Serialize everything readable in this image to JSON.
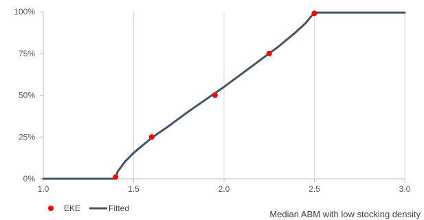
{
  "chart_data": {
    "type": "line",
    "title": "",
    "xlabel": "Median ABM with low stocking density",
    "ylabel": "",
    "xlim": [
      1.0,
      3.0
    ],
    "ylim": [
      0,
      1
    ],
    "x_ticks": [
      1.0,
      1.5,
      2.0,
      2.5,
      3.0
    ],
    "x_tick_labels": [
      "1.0",
      "1.5",
      "2.0",
      "2.5",
      "3.0"
    ],
    "y_ticks": [
      0,
      0.25,
      0.5,
      0.75,
      1.0
    ],
    "y_tick_labels": [
      "0%",
      "25%",
      "50%",
      "75%",
      "100%"
    ],
    "grid": "vertical",
    "legend_position": "bottom-left",
    "series": [
      {
        "name": "EKE",
        "kind": "scatter",
        "color": "#ff0000",
        "points": [
          {
            "x": 1.4,
            "y": 0.01
          },
          {
            "x": 1.6,
            "y": 0.25
          },
          {
            "x": 1.95,
            "y": 0.5
          },
          {
            "x": 2.25,
            "y": 0.75
          },
          {
            "x": 2.5,
            "y": 0.99
          }
        ]
      },
      {
        "name": "Fitted",
        "kind": "line",
        "color": "#44546a",
        "points": [
          {
            "x": 1.0,
            "y": 0.0
          },
          {
            "x": 1.4,
            "y": 0.0
          },
          {
            "x": 1.41,
            "y": 0.04
          },
          {
            "x": 1.45,
            "y": 0.1
          },
          {
            "x": 1.5,
            "y": 0.155
          },
          {
            "x": 1.55,
            "y": 0.2
          },
          {
            "x": 1.6,
            "y": 0.245
          },
          {
            "x": 1.7,
            "y": 0.32
          },
          {
            "x": 1.8,
            "y": 0.4
          },
          {
            "x": 1.9,
            "y": 0.475
          },
          {
            "x": 2.0,
            "y": 0.55
          },
          {
            "x": 2.1,
            "y": 0.63
          },
          {
            "x": 2.2,
            "y": 0.71
          },
          {
            "x": 2.3,
            "y": 0.79
          },
          {
            "x": 2.4,
            "y": 0.88
          },
          {
            "x": 2.45,
            "y": 0.93
          },
          {
            "x": 2.5,
            "y": 0.995
          },
          {
            "x": 3.0,
            "y": 0.995
          }
        ]
      }
    ]
  }
}
